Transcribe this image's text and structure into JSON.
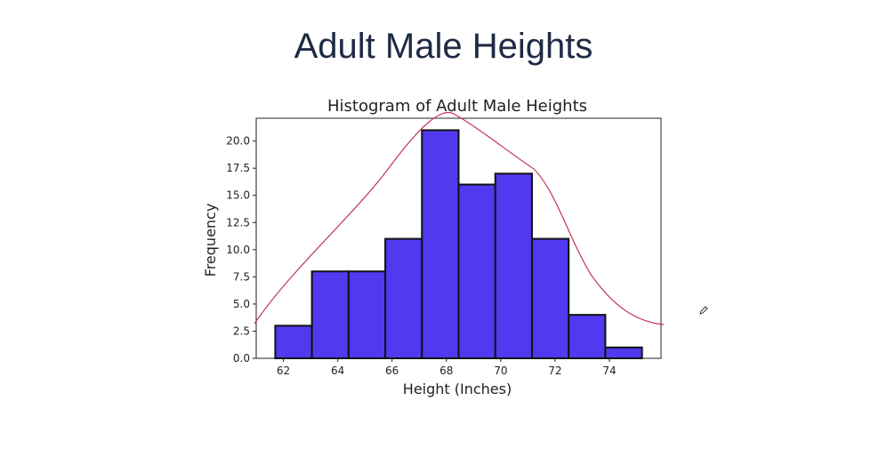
{
  "slide": {
    "title": "Adult Male Heights"
  },
  "annotation": {
    "pen_icon": "pen-icon",
    "curve_color": "#c0395a"
  },
  "chart_data": {
    "type": "bar",
    "title": "Histogram of Adult Male Heights",
    "xlabel": "Height (Inches)",
    "ylabel": "Frequency",
    "bins": [
      {
        "start": 61.7,
        "end": 63.05,
        "value": 3
      },
      {
        "start": 63.05,
        "end": 64.4,
        "value": 8
      },
      {
        "start": 64.4,
        "end": 65.75,
        "value": 8
      },
      {
        "start": 65.75,
        "end": 67.1,
        "value": 11
      },
      {
        "start": 67.1,
        "end": 68.45,
        "value": 21
      },
      {
        "start": 68.45,
        "end": 69.8,
        "value": 16
      },
      {
        "start": 69.8,
        "end": 71.15,
        "value": 17
      },
      {
        "start": 71.15,
        "end": 72.5,
        "value": 11
      },
      {
        "start": 72.5,
        "end": 73.85,
        "value": 4
      },
      {
        "start": 73.85,
        "end": 75.2,
        "value": 1
      }
    ],
    "xlim": [
      61.0,
      75.9
    ],
    "ylim": [
      0,
      22.1
    ],
    "xticks": [
      "62",
      "64",
      "66",
      "68",
      "70",
      "72",
      "74"
    ],
    "xtick_values": [
      62,
      64,
      66,
      68,
      70,
      72,
      74
    ],
    "yticks": [
      "0.0",
      "2.5",
      "5.0",
      "7.5",
      "10.0",
      "12.5",
      "15.0",
      "17.5",
      "20.0"
    ],
    "ytick_values": [
      0,
      2.5,
      5,
      7.5,
      10,
      12.5,
      15,
      17.5,
      20
    ],
    "bar_color": "#5139f0",
    "edge_color": "#111111",
    "grid": false
  }
}
